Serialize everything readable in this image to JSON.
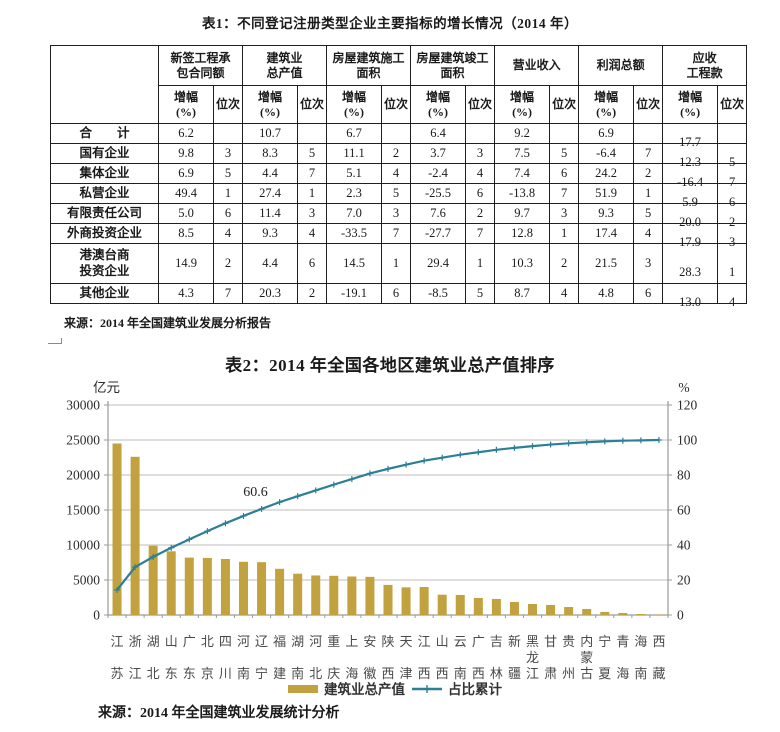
{
  "table1": {
    "title": "表1：不同登记注册类型企业主要指标的增长情况（2014 年）",
    "column_groups": [
      "新签工程承\n包合同额",
      "建筑业\n总产值",
      "房屋建筑施工\n面积",
      "房屋建筑竣工\n面积",
      "营业收入",
      "利润总额",
      "应收\n工程款"
    ],
    "sub_growth": "增幅\n(%)",
    "sub_rank": "位次",
    "rows": [
      {
        "label": "合　　计",
        "cells": [
          "6.2",
          "",
          "10.7",
          "",
          "6.7",
          "",
          "6.4",
          "",
          "9.2",
          "",
          "6.9",
          "",
          "17.7",
          ""
        ]
      },
      {
        "label": "国有企业",
        "cells": [
          "9.8",
          "3",
          "8.3",
          "5",
          "11.1",
          "2",
          "3.7",
          "3",
          "7.5",
          "5",
          "-6.4",
          "7",
          "12.3",
          "5"
        ]
      },
      {
        "label": "集体企业",
        "cells": [
          "6.9",
          "5",
          "4.4",
          "7",
          "5.1",
          "4",
          "-2.4",
          "4",
          "7.4",
          "6",
          "24.2",
          "2",
          "-16.4",
          "7"
        ]
      },
      {
        "label": "私营企业",
        "cells": [
          "49.4",
          "1",
          "27.4",
          "1",
          "2.3",
          "5",
          "-25.5",
          "6",
          "-13.8",
          "7",
          "51.9",
          "1",
          "5.9",
          "6"
        ]
      },
      {
        "label": "有限责任公司",
        "cells": [
          "5.0",
          "6",
          "11.4",
          "3",
          "7.0",
          "3",
          "7.6",
          "2",
          "9.7",
          "3",
          "9.3",
          "5",
          "20.0",
          "2"
        ]
      },
      {
        "label": "外商投资企业",
        "cells": [
          "8.5",
          "4",
          "9.3",
          "4",
          "-33.5",
          "7",
          "-27.7",
          "7",
          "12.8",
          "1",
          "17.4",
          "4",
          "17.9",
          "3"
        ]
      },
      {
        "label": "港澳台商\n投资企业",
        "cells": [
          "14.9",
          "2",
          "4.4",
          "6",
          "14.5",
          "1",
          "29.4",
          "1",
          "10.3",
          "2",
          "21.5",
          "3",
          "28.3",
          "1"
        ]
      },
      {
        "label": "其他企业",
        "cells": [
          "4.3",
          "7",
          "20.3",
          "2",
          "-19.1",
          "6",
          "-8.5",
          "5",
          "8.7",
          "4",
          "4.8",
          "6",
          "13.0",
          "4"
        ]
      }
    ],
    "source": "来源：2014 年全国建筑业发展分析报告"
  },
  "chart": {
    "title": "表2：2014 年全国各地区建筑业总产值排序",
    "legend": [
      "建筑业总产值",
      "占比累计"
    ],
    "source": "来源：2014 年全国建筑业发展统计分析",
    "colors": {
      "bar": "#c2a23e",
      "line": "#2d7f96",
      "grid": "#bcbcbc",
      "axis": "#9a9a9a",
      "tick_text": "#2b2b2b",
      "x_label_text": "#4a4a4a"
    }
  },
  "chart_data": {
    "type": "bar",
    "subtype": "pareto (bar + cumulative line)",
    "title": "表2：2014 年全国各地区建筑业总产值排序",
    "categories": [
      "江苏",
      "浙江",
      "湖北",
      "山东",
      "广东",
      "北京",
      "四川",
      "河南",
      "辽宁",
      "福建",
      "湖南",
      "河北",
      "重庆",
      "上海",
      "安徽",
      "陕西",
      "天津",
      "江西",
      "山西",
      "云南",
      "广西",
      "吉林",
      "新疆",
      "黑龙江",
      "甘肃",
      "贵州",
      "内蒙古",
      "宁夏",
      "青海",
      "海南",
      "西藏"
    ],
    "series": [
      {
        "name": "建筑业总产值",
        "type": "bar",
        "axis": "left",
        "unit": "亿元",
        "values": [
          24500,
          22600,
          9900,
          9100,
          8200,
          8150,
          8000,
          7600,
          7550,
          6600,
          5900,
          5650,
          5600,
          5500,
          5450,
          4300,
          3950,
          4000,
          2900,
          2860,
          2430,
          2290,
          1860,
          1570,
          1430,
          1140,
          860,
          430,
          290,
          140,
          60
        ]
      },
      {
        "name": "占比累计",
        "type": "line",
        "axis": "right",
        "unit": "%",
        "values": [
          14.3,
          27.4,
          33.2,
          38.4,
          43.2,
          47.9,
          52.4,
          56.6,
          60.6,
          64.5,
          67.9,
          71.2,
          74.5,
          77.7,
          80.9,
          83.5,
          85.9,
          88.2,
          89.9,
          91.6,
          93.0,
          94.4,
          95.5,
          96.5,
          97.4,
          98.1,
          98.7,
          99.2,
          99.6,
          99.8,
          100.0
        ]
      }
    ],
    "left_axis": {
      "label": "亿元",
      "min": 0,
      "max": 30000,
      "ticks": [
        0,
        5000,
        10000,
        15000,
        20000,
        25000,
        30000
      ]
    },
    "right_axis": {
      "label": "%",
      "min": 0,
      "max": 120,
      "ticks": [
        0,
        20,
        40,
        60,
        80,
        100,
        120
      ]
    },
    "annotation": {
      "text": "60.6",
      "series": "占比累计",
      "index": 8
    },
    "grid": true,
    "legend_position": "bottom"
  }
}
